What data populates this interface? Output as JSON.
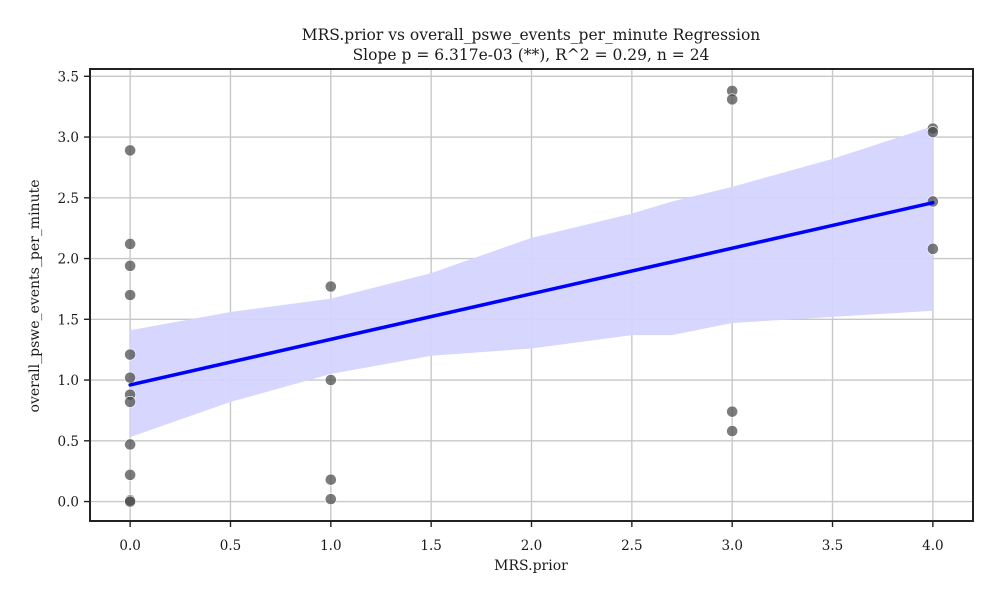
{
  "chart_data": {
    "type": "scatter",
    "title": "MRS.prior vs overall_pswe_events_per_minute Regression",
    "subtitle": "Slope p = 6.317e-03 (**), R^2 = 0.29, n = 24",
    "xlabel": "MRS.prior",
    "ylabel": "overall_pswe_events_per_minute",
    "xlim": [
      -0.2,
      4.2
    ],
    "ylim": [
      -0.16,
      3.56
    ],
    "x_ticks": [
      0.0,
      0.5,
      1.0,
      1.5,
      2.0,
      2.5,
      3.0,
      3.5,
      4.0
    ],
    "x_tick_labels": [
      "0.0",
      "0.5",
      "1.0",
      "1.5",
      "2.0",
      "2.5",
      "3.0",
      "3.5",
      "4.0"
    ],
    "y_ticks": [
      0.0,
      0.5,
      1.0,
      1.5,
      2.0,
      2.5,
      3.0,
      3.5
    ],
    "y_tick_labels": [
      "0.0",
      "0.5",
      "1.0",
      "1.5",
      "2.0",
      "2.5",
      "3.0",
      "3.5"
    ],
    "grid": true,
    "points": [
      {
        "x": 0,
        "y": 2.89
      },
      {
        "x": 0,
        "y": 2.12
      },
      {
        "x": 0,
        "y": 1.94
      },
      {
        "x": 0,
        "y": 1.7
      },
      {
        "x": 0,
        "y": 1.21
      },
      {
        "x": 0,
        "y": 1.02
      },
      {
        "x": 0,
        "y": 0.88
      },
      {
        "x": 0,
        "y": 0.82
      },
      {
        "x": 0,
        "y": 0.47
      },
      {
        "x": 0,
        "y": 0.22
      },
      {
        "x": 0,
        "y": 0.01
      },
      {
        "x": 0,
        "y": 0.0
      },
      {
        "x": 1,
        "y": 1.77
      },
      {
        "x": 1,
        "y": 1.0
      },
      {
        "x": 1,
        "y": 0.18
      },
      {
        "x": 1,
        "y": 0.02
      },
      {
        "x": 3,
        "y": 3.38
      },
      {
        "x": 3,
        "y": 3.31
      },
      {
        "x": 3,
        "y": 0.74
      },
      {
        "x": 3,
        "y": 0.58
      },
      {
        "x": 4,
        "y": 3.07
      },
      {
        "x": 4,
        "y": 3.04
      },
      {
        "x": 4,
        "y": 2.47
      },
      {
        "x": 4,
        "y": 2.08
      }
    ],
    "regression_line": {
      "x": [
        0,
        4
      ],
      "y": [
        0.96,
        2.46
      ]
    },
    "confidence_band": {
      "x": [
        0.0,
        0.5,
        1.0,
        1.5,
        2.0,
        2.5,
        2.7,
        3.0,
        3.5,
        4.0
      ],
      "lower": [
        0.53,
        0.82,
        1.05,
        1.2,
        1.26,
        1.37,
        1.37,
        1.47,
        1.52,
        1.57
      ],
      "upper": [
        1.41,
        1.56,
        1.67,
        1.88,
        2.17,
        2.37,
        2.47,
        2.59,
        2.82,
        3.09
      ]
    },
    "colors": {
      "points": "#4a4a4a",
      "line": "#0000ff",
      "band": "#d4d4ff"
    }
  }
}
